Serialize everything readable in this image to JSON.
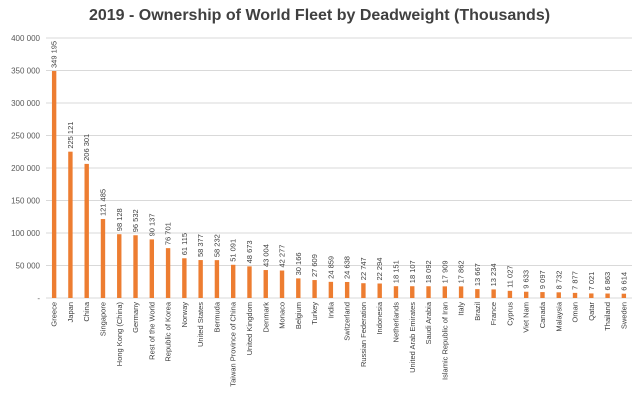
{
  "chart_data": {
    "type": "bar",
    "title": "2019 - Ownership of World Fleet by Deadweight (Thousands)",
    "xlabel": "",
    "ylabel": "",
    "ylim": [
      0,
      400000
    ],
    "yticks": [
      0,
      50000,
      100000,
      150000,
      200000,
      250000,
      300000,
      350000,
      400000
    ],
    "ytick_labels": [
      "-",
      "50 000",
      "100 000",
      "150 000",
      "200 000",
      "250 000",
      "300 000",
      "350 000",
      "400 000"
    ],
    "grid": true,
    "bar_color": "#ed7d31",
    "categories": [
      "Greece",
      "Japan",
      "China",
      "Singapore",
      "Hong Kong (China)",
      "Germany",
      "Rest of the World",
      "Republic of Korea",
      "Norway",
      "United States",
      "Bermuda",
      "Taiwan Province of China",
      "United Kingdom",
      "Denmark",
      "Monaco",
      "Belgium",
      "Turkey",
      "India",
      "Switzerland",
      "Russian Federation",
      "Indonesia",
      "Netherlands",
      "United Arab Emirates",
      "Saudi Arabia",
      "Islamic Republic of Iran",
      "Italy",
      "Brazil",
      "France",
      "Cyprus",
      "Viet Nam",
      "Canada",
      "Malaysia",
      "Oman",
      "Qatar",
      "Thailand",
      "Sweden"
    ],
    "values": [
      349195,
      225121,
      206301,
      121485,
      98128,
      96532,
      90137,
      76701,
      61115,
      58377,
      58232,
      51091,
      48673,
      43004,
      42277,
      30166,
      27609,
      24859,
      24638,
      22747,
      22294,
      18151,
      18107,
      18092,
      17909,
      17862,
      13667,
      13234,
      11027,
      9633,
      9097,
      8732,
      7877,
      7021,
      6863,
      6614
    ],
    "data_labels": [
      "349 195",
      "225 121",
      "206 301",
      "121 485",
      "98 128",
      "96 532",
      "90 137",
      "76 701",
      "61 115",
      "58 377",
      "58 232",
      "51 091",
      "48 673",
      "43 004",
      "42 277",
      "30 166",
      "27 609",
      "24 859",
      "24 638",
      "22 747",
      "22 294",
      "18 151",
      "18 107",
      "18 092",
      "17 909",
      "17 862",
      "13 667",
      "13 234",
      "11 027",
      "9 633",
      "9 097",
      "8 732",
      "7 877",
      "7 021",
      "6 863",
      "6 614"
    ]
  }
}
